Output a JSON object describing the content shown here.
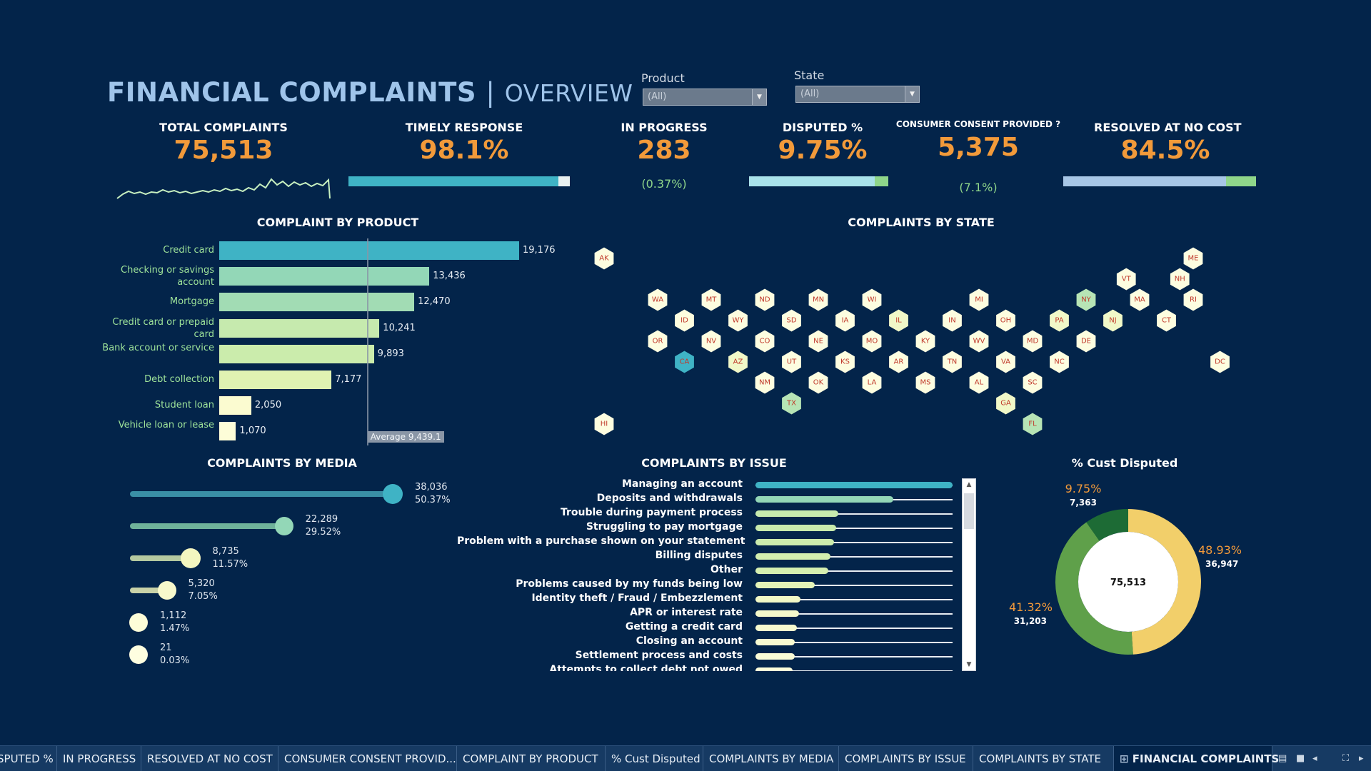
{
  "header": {
    "title": "FINANCIAL COMPLAINTS",
    "separator": "|",
    "subtitle": "OVERVIEW"
  },
  "filters": [
    {
      "label": "Product",
      "value": "(All)"
    },
    {
      "label": "State",
      "value": "(All)"
    }
  ],
  "kpis": {
    "total": {
      "title": "TOTAL COMPLAINTS",
      "value": "75,513"
    },
    "timely": {
      "title": "TIMELY RESPONSE",
      "value": "98.1%",
      "progress": 0.981
    },
    "in_progress": {
      "title": "IN PROGRESS",
      "value": "283",
      "pct": "(0.37%)"
    },
    "disputed": {
      "title": "DISPUTED %",
      "value": "9.75%",
      "progress": 0.0975
    },
    "consent": {
      "title": "CONSUMER CONSENT PROVIDED ?",
      "value": "5,375",
      "pct": "(7.1%)"
    },
    "resolved": {
      "title": "RESOLVED AT NO COST",
      "value": "84.5%",
      "progress": 0.845
    }
  },
  "colors": {
    "background": "#03244a",
    "accent_orange": "#f29a3a",
    "teal": "#3fb3c5",
    "light_green": "#8fd68a",
    "yellow": "#f2cf6a",
    "dark_green": "#1d6b35",
    "mid_green": "#5fa04a"
  },
  "product_chart": {
    "title": "COMPLAINT BY PRODUCT",
    "average_label": "Average 9,439.1",
    "average": 9439.1,
    "max": 19176,
    "items": [
      {
        "label": "Credit card",
        "value": 19176,
        "display": "19,176",
        "color": "#3fb3c5"
      },
      {
        "label": "Checking or savings account",
        "value": 13436,
        "display": "13,436",
        "color": "#93d7b7"
      },
      {
        "label": "Mortgage",
        "value": 12470,
        "display": "12,470",
        "color": "#a2dcb4"
      },
      {
        "label": "Credit card or prepaid card",
        "value": 10241,
        "display": "10,241",
        "color": "#c6eaae"
      },
      {
        "label": "Bank account or service",
        "value": 9893,
        "display": "9,893",
        "color": "#cbecac"
      },
      {
        "label": "Debt collection",
        "value": 7177,
        "display": "7,177",
        "color": "#e0f3b2"
      },
      {
        "label": "Student loan",
        "value": 2050,
        "display": "2,050",
        "color": "#fbfbd0"
      },
      {
        "label": "Vehicle loan or lease",
        "value": 1070,
        "display": "1,070",
        "color": "#fdfdd8"
      }
    ]
  },
  "state_map": {
    "title": "COMPLAINTS BY STATE",
    "states": [
      {
        "code": "AK",
        "col": 0,
        "row": 0,
        "color": "#fdfde0"
      },
      {
        "code": "ME",
        "col": 22,
        "row": 0,
        "color": "#fdfde0"
      },
      {
        "code": "VT",
        "col": 19.5,
        "row": 1,
        "color": "#fdfde0"
      },
      {
        "code": "NH",
        "col": 21.5,
        "row": 1,
        "color": "#fdfde0"
      },
      {
        "code": "WA",
        "col": 2,
        "row": 2,
        "color": "#fdfde0"
      },
      {
        "code": "MT",
        "col": 4,
        "row": 2,
        "color": "#fdfde0"
      },
      {
        "code": "ND",
        "col": 6,
        "row": 2,
        "color": "#fdfde0"
      },
      {
        "code": "MN",
        "col": 8,
        "row": 2,
        "color": "#fdfde0"
      },
      {
        "code": "WI",
        "col": 10,
        "row": 2,
        "color": "#fdfde0"
      },
      {
        "code": "MI",
        "col": 14,
        "row": 2,
        "color": "#fdfde0"
      },
      {
        "code": "NY",
        "col": 18,
        "row": 2,
        "color": "#b7e4b5"
      },
      {
        "code": "MA",
        "col": 20,
        "row": 2,
        "color": "#fdfde0"
      },
      {
        "code": "RI",
        "col": 22,
        "row": 2,
        "color": "#fdfde0"
      },
      {
        "code": "ID",
        "col": 3,
        "row": 3,
        "color": "#fdfde0"
      },
      {
        "code": "WY",
        "col": 5,
        "row": 3,
        "color": "#fdfde0"
      },
      {
        "code": "SD",
        "col": 7,
        "row": 3,
        "color": "#fdfde0"
      },
      {
        "code": "IA",
        "col": 9,
        "row": 3,
        "color": "#fdfde0"
      },
      {
        "code": "IL",
        "col": 11,
        "row": 3,
        "color": "#f1f8c8"
      },
      {
        "code": "IN",
        "col": 13,
        "row": 3,
        "color": "#fdfde0"
      },
      {
        "code": "OH",
        "col": 15,
        "row": 3,
        "color": "#fdfde0"
      },
      {
        "code": "PA",
        "col": 17,
        "row": 3,
        "color": "#f1f8c8"
      },
      {
        "code": "NJ",
        "col": 19,
        "row": 3,
        "color": "#f1f8c8"
      },
      {
        "code": "CT",
        "col": 21,
        "row": 3,
        "color": "#fdfde0"
      },
      {
        "code": "OR",
        "col": 2,
        "row": 4,
        "color": "#fdfde0"
      },
      {
        "code": "NV",
        "col": 4,
        "row": 4,
        "color": "#fdfde0"
      },
      {
        "code": "CO",
        "col": 6,
        "row": 4,
        "color": "#fdfde0"
      },
      {
        "code": "NE",
        "col": 8,
        "row": 4,
        "color": "#fdfde0"
      },
      {
        "code": "MO",
        "col": 10,
        "row": 4,
        "color": "#fdfde0"
      },
      {
        "code": "KY",
        "col": 12,
        "row": 4,
        "color": "#fdfde0"
      },
      {
        "code": "WV",
        "col": 14,
        "row": 4,
        "color": "#fdfde0"
      },
      {
        "code": "MD",
        "col": 16,
        "row": 4,
        "color": "#fdfde0"
      },
      {
        "code": "DE",
        "col": 18,
        "row": 4,
        "color": "#fdfde0"
      },
      {
        "code": "CA",
        "col": 3,
        "row": 5,
        "color": "#3fb3c5"
      },
      {
        "code": "AZ",
        "col": 5,
        "row": 5,
        "color": "#f1f8c8"
      },
      {
        "code": "UT",
        "col": 7,
        "row": 5,
        "color": "#fdfde0"
      },
      {
        "code": "KS",
        "col": 9,
        "row": 5,
        "color": "#fdfde0"
      },
      {
        "code": "AR",
        "col": 11,
        "row": 5,
        "color": "#fdfde0"
      },
      {
        "code": "TN",
        "col": 13,
        "row": 5,
        "color": "#fdfde0"
      },
      {
        "code": "VA",
        "col": 15,
        "row": 5,
        "color": "#fdfde0"
      },
      {
        "code": "NC",
        "col": 17,
        "row": 5,
        "color": "#fdfde0"
      },
      {
        "code": "DC",
        "col": 23,
        "row": 5,
        "color": "#fdfde0"
      },
      {
        "code": "NM",
        "col": 6,
        "row": 6,
        "color": "#fdfde0"
      },
      {
        "code": "OK",
        "col": 8,
        "row": 6,
        "color": "#fdfde0"
      },
      {
        "code": "LA",
        "col": 10,
        "row": 6,
        "color": "#fdfde0"
      },
      {
        "code": "MS",
        "col": 12,
        "row": 6,
        "color": "#fdfde0"
      },
      {
        "code": "AL",
        "col": 14,
        "row": 6,
        "color": "#fdfde0"
      },
      {
        "code": "SC",
        "col": 16,
        "row": 6,
        "color": "#fdfde0"
      },
      {
        "code": "TX",
        "col": 7,
        "row": 7,
        "color": "#b7e4b5"
      },
      {
        "code": "GA",
        "col": 15,
        "row": 7,
        "color": "#f1f8c8"
      },
      {
        "code": "HI",
        "col": 0,
        "row": 8,
        "color": "#fdfde0"
      },
      {
        "code": "FL",
        "col": 16,
        "row": 8,
        "color": "#b7e4b5"
      }
    ]
  },
  "media_chart": {
    "title": "COMPLAINTS BY MEDIA",
    "items": [
      {
        "value": "38,036",
        "pct": "50.37%",
        "share": 0.5037,
        "color": "#3a8fa6",
        "dot": "#3fb3c5"
      },
      {
        "value": "22,289",
        "pct": "29.52%",
        "share": 0.2952,
        "color": "#6fb29a",
        "dot": "#93d7b7"
      },
      {
        "value": "8,735",
        "pct": "11.57%",
        "share": 0.1157,
        "color": "#b5c9a0",
        "dot": "#f3f6c0"
      },
      {
        "value": "5,320",
        "pct": "7.05%",
        "share": 0.0705,
        "color": "#c9d2a8",
        "dot": "#f8f9cc"
      },
      {
        "value": "1,112",
        "pct": "1.47%",
        "share": 0.0147,
        "color": "#e3e6be",
        "dot": "#fdfdd8"
      },
      {
        "value": "21",
        "pct": "0.03%",
        "share": 0.0003,
        "color": "#eef0cc",
        "dot": "#fefee0"
      }
    ]
  },
  "issue_chart": {
    "title": "COMPLAINTS BY ISSUE",
    "items": [
      {
        "label": "Managing an account",
        "share": 1.0,
        "color": "#3fb3c5"
      },
      {
        "label": "Deposits and withdrawals",
        "share": 0.7,
        "color": "#93d7b7"
      },
      {
        "label": "Trouble during payment process",
        "share": 0.42,
        "color": "#c6eaae"
      },
      {
        "label": "Struggling to pay mortgage",
        "share": 0.41,
        "color": "#c9ebad"
      },
      {
        "label": "Problem with a purchase shown on your statement",
        "share": 0.4,
        "color": "#ccecad"
      },
      {
        "label": "Billing disputes",
        "share": 0.38,
        "color": "#d3eeae"
      },
      {
        "label": "Other",
        "share": 0.37,
        "color": "#d6efb0"
      },
      {
        "label": "Problems caused by my funds being low",
        "share": 0.3,
        "color": "#e5f4b8"
      },
      {
        "label": "Identity theft / Fraud / Embezzlement",
        "share": 0.23,
        "color": "#f1f8c6"
      },
      {
        "label": "APR or interest rate",
        "share": 0.22,
        "color": "#f4f9ca"
      },
      {
        "label": "Getting a credit card",
        "share": 0.21,
        "color": "#f6face"
      },
      {
        "label": "Closing an account",
        "share": 0.2,
        "color": "#f8fbd2"
      },
      {
        "label": "Settlement process and costs",
        "share": 0.2,
        "color": "#fafcd6"
      },
      {
        "label": "Attempts to collect debt not owed",
        "share": 0.19,
        "color": "#fcfdda"
      }
    ]
  },
  "donut": {
    "title": "% Cust Disputed",
    "center": "75,513",
    "slices": [
      {
        "pct": "48.93%",
        "count": "36,947",
        "share": 0.4893,
        "color": "#f2cf6a"
      },
      {
        "pct": "41.32%",
        "count": "31,203",
        "share": 0.4132,
        "color": "#5fa04a"
      },
      {
        "pct": "9.75%",
        "count": "7,363",
        "share": 0.0975,
        "color": "#1d6b35"
      }
    ]
  },
  "tabs": [
    {
      "label": "SPUTED %"
    },
    {
      "label": "IN PROGRESS"
    },
    {
      "label": "RESOLVED AT NO COST"
    },
    {
      "label": "CONSUMER CONSENT PROVID..."
    },
    {
      "label": "COMPLAINT BY PRODUCT"
    },
    {
      "label": "% Cust Disputed"
    },
    {
      "label": "COMPLAINTS BY MEDIA"
    },
    {
      "label": "COMPLAINTS BY ISSUE"
    },
    {
      "label": "COMPLAINTS BY STATE"
    },
    {
      "label": "FINANCIAL COMPLAINTS",
      "icon": "dashboard-icon",
      "active": true
    }
  ]
}
